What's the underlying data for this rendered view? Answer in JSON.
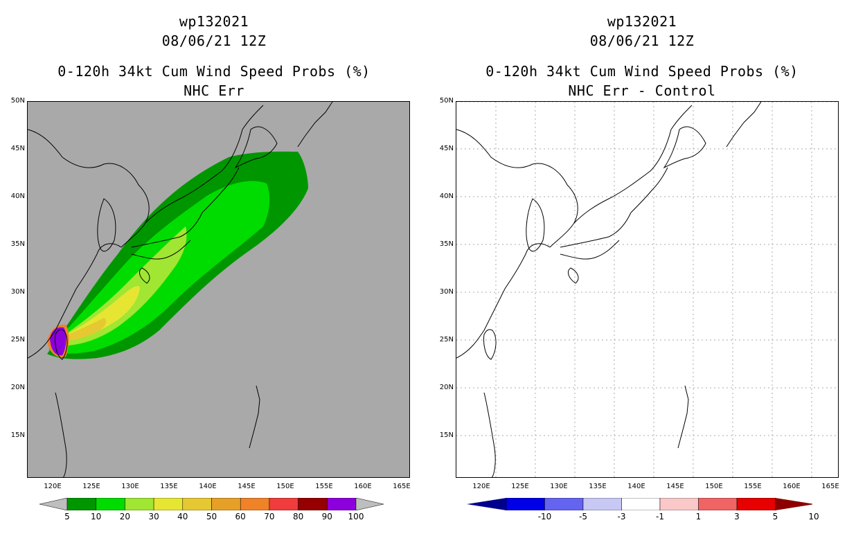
{
  "left_panel": {
    "title_storm": "wp132021",
    "title_time": "08/06/21 12Z",
    "title_product": "0-120h 34kt Cum Wind Speed Probs (%)",
    "title_method": "NHC Err",
    "y_labels": [
      "50N",
      "45N",
      "40N",
      "35N",
      "30N",
      "25N",
      "20N",
      "15N"
    ],
    "x_labels": [
      "120E",
      "125E",
      "130E",
      "135E",
      "140E",
      "145E",
      "150E",
      "155E",
      "160E",
      "165E"
    ],
    "colorbar": {
      "labels": [
        "5",
        "10",
        "20",
        "30",
        "40",
        "50",
        "60",
        "70",
        "80",
        "90",
        "100"
      ],
      "colors": [
        "#bebebe",
        "#009600",
        "#00dc00",
        "#a0e632",
        "#e6e632",
        "#e6c832",
        "#e6a028",
        "#f08228",
        "#f03c3c",
        "#960000",
        "#8c00dc",
        "#bebebe"
      ]
    }
  },
  "right_panel": {
    "title_storm": "wp132021",
    "title_time": "08/06/21 12Z",
    "title_product": "0-120h 34kt Cum Wind Speed Probs (%)",
    "title_method": "NHC Err - Control",
    "y_labels": [
      "50N",
      "45N",
      "40N",
      "35N",
      "30N",
      "25N",
      "20N",
      "15N"
    ],
    "x_labels": [
      "120E",
      "125E",
      "130E",
      "135E",
      "140E",
      "145E",
      "150E",
      "155E",
      "160E",
      "165E"
    ],
    "colorbar": {
      "labels": [
        "-10",
        "-5",
        "-3",
        "-1",
        "1",
        "3",
        "5",
        "10"
      ],
      "colors": [
        "#00008c",
        "#0000e6",
        "#6464f0",
        "#c8c8f5",
        "#ffffff",
        "#fac8c8",
        "#f06464",
        "#e60000",
        "#8c0000"
      ]
    }
  }
}
